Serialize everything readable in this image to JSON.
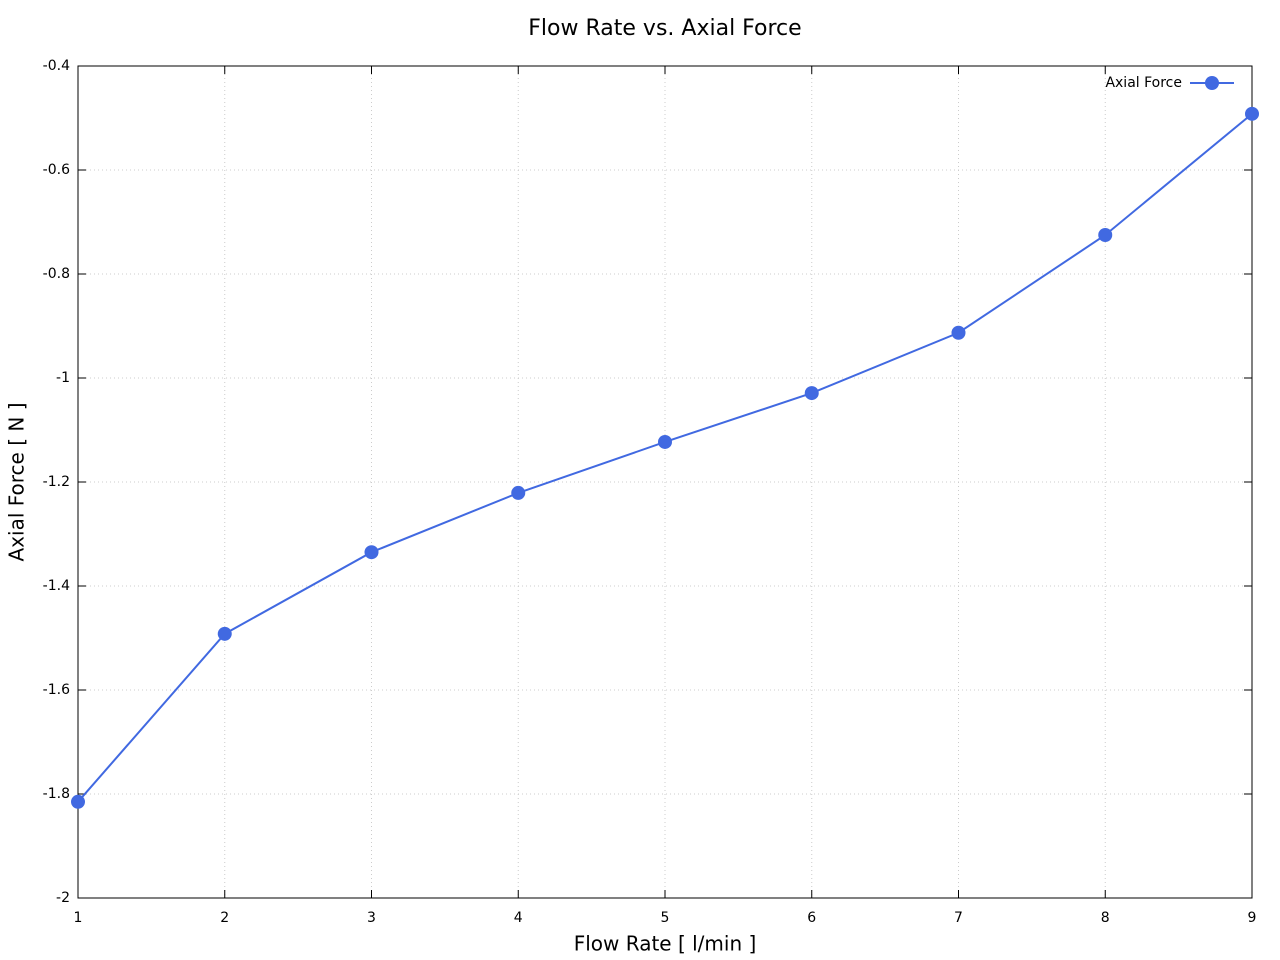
{
  "chart_data": {
    "type": "line",
    "title": "Flow Rate vs. Axial Force",
    "x_label": "Flow Rate [ l/min ]",
    "y_label": "Axial Force [ N ]",
    "x": [
      1,
      2,
      3,
      4,
      5,
      6,
      7,
      8,
      9
    ],
    "series": [
      {
        "name": "Axial Force",
        "color": "#4169e1",
        "values": [
          -1.815,
          -1.492,
          -1.335,
          -1.221,
          -1.123,
          -1.029,
          -0.913,
          -0.725,
          -0.492
        ]
      }
    ],
    "xlim": [
      1,
      9
    ],
    "xticks": [
      1,
      2,
      3,
      4,
      5,
      6,
      7,
      8,
      9
    ],
    "ylim": [
      -2,
      -0.4
    ],
    "yticks": [
      -2,
      -1.8,
      -1.6,
      -1.4,
      -1.2,
      -1,
      -0.8,
      -0.6,
      -0.4
    ],
    "grid": true,
    "legend": "top-right"
  }
}
